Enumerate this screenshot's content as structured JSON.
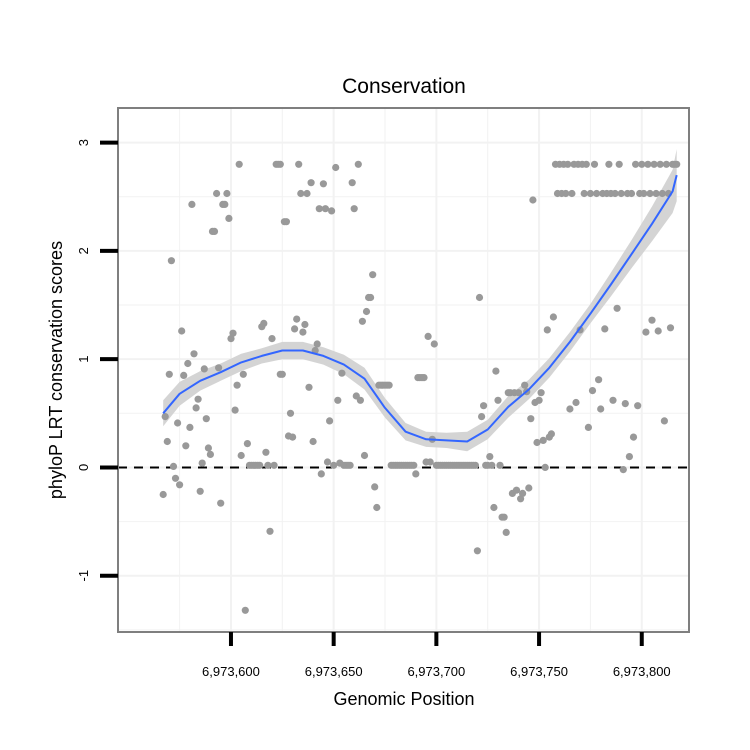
{
  "chart_data": {
    "type": "scatter",
    "title": "Conservation",
    "xlabel": "Genomic Position",
    "ylabel": "phyloP LRT conservation scores",
    "xlim": [
      6973545,
      6973823
    ],
    "ylim": [
      -1.52,
      3.32
    ],
    "x_ticks": [
      6973600,
      6973650,
      6973700,
      6973750,
      6973800
    ],
    "x_tick_labels": [
      "6,973,600",
      "6,973,650",
      "6,973,700",
      "6,973,750",
      "6,973,800"
    ],
    "y_ticks": [
      -1,
      0,
      1,
      2,
      3
    ],
    "y_tick_labels": [
      "-1",
      "0",
      "1",
      "2",
      "3"
    ],
    "reference_line": {
      "y": 0,
      "style": "dashed"
    },
    "grid": true,
    "colors": {
      "points": "#999999",
      "smooth_line": "#3366FF",
      "confidence_band": "#d4d4d4",
      "reference_line": "#000000",
      "panel_border": "#7f7f7f",
      "grid": "#f2f2f2"
    },
    "points": [
      {
        "x": 6973567,
        "y": -0.25
      },
      {
        "x": 6973568,
        "y": 0.47
      },
      {
        "x": 6973569,
        "y": 0.24
      },
      {
        "x": 6973570,
        "y": 0.86
      },
      {
        "x": 6973571,
        "y": 1.91
      },
      {
        "x": 6973572,
        "y": 0.01
      },
      {
        "x": 6973573,
        "y": -0.1
      },
      {
        "x": 6973574,
        "y": 0.41
      },
      {
        "x": 6973575,
        "y": -0.16
      },
      {
        "x": 6973576,
        "y": 1.26
      },
      {
        "x": 6973577,
        "y": 0.85
      },
      {
        "x": 6973578,
        "y": 0.2
      },
      {
        "x": 6973579,
        "y": 0.96
      },
      {
        "x": 6973580,
        "y": 0.37
      },
      {
        "x": 6973581,
        "y": 2.43
      },
      {
        "x": 6973582,
        "y": 1.05
      },
      {
        "x": 6973583,
        "y": 0.55
      },
      {
        "x": 6973584,
        "y": 0.63
      },
      {
        "x": 6973585,
        "y": -0.22
      },
      {
        "x": 6973586,
        "y": 0.04
      },
      {
        "x": 6973587,
        "y": 0.91
      },
      {
        "x": 6973588,
        "y": 0.45
      },
      {
        "x": 6973589,
        "y": 0.18
      },
      {
        "x": 6973590,
        "y": 0.12
      },
      {
        "x": 6973591,
        "y": 2.18
      },
      {
        "x": 6973592,
        "y": 2.18
      },
      {
        "x": 6973593,
        "y": 2.53
      },
      {
        "x": 6973594,
        "y": 0.92
      },
      {
        "x": 6973595,
        "y": -0.33
      },
      {
        "x": 6973596,
        "y": 2.43
      },
      {
        "x": 6973597,
        "y": 2.43
      },
      {
        "x": 6973598,
        "y": 2.53
      },
      {
        "x": 6973599,
        "y": 2.3
      },
      {
        "x": 6973600,
        "y": 1.19
      },
      {
        "x": 6973601,
        "y": 1.24
      },
      {
        "x": 6973602,
        "y": 0.53
      },
      {
        "x": 6973603,
        "y": 0.76
      },
      {
        "x": 6973604,
        "y": 2.8
      },
      {
        "x": 6973605,
        "y": 0.11
      },
      {
        "x": 6973606,
        "y": 0.86
      },
      {
        "x": 6973607,
        "y": -1.32
      },
      {
        "x": 6973608,
        "y": 0.22
      },
      {
        "x": 6973609,
        "y": 0.02
      },
      {
        "x": 6973610,
        "y": 0.02
      },
      {
        "x": 6973611,
        "y": 0.02
      },
      {
        "x": 6973612,
        "y": 0.02
      },
      {
        "x": 6973613,
        "y": 0.02
      },
      {
        "x": 6973614,
        "y": 0.02
      },
      {
        "x": 6973615,
        "y": 1.3
      },
      {
        "x": 6973616,
        "y": 1.33
      },
      {
        "x": 6973617,
        "y": 0.14
      },
      {
        "x": 6973618,
        "y": 0.02
      },
      {
        "x": 6973619,
        "y": -0.59
      },
      {
        "x": 6973620,
        "y": 1.19
      },
      {
        "x": 6973621,
        "y": 0.02
      },
      {
        "x": 6973622,
        "y": 2.8
      },
      {
        "x": 6973623,
        "y": 2.8
      },
      {
        "x": 6973624,
        "y": 2.8
      },
      {
        "x": 6973624,
        "y": 0.86
      },
      {
        "x": 6973625,
        "y": 0.86
      },
      {
        "x": 6973626,
        "y": 2.27
      },
      {
        "x": 6973627,
        "y": 2.27
      },
      {
        "x": 6973628,
        "y": 0.29
      },
      {
        "x": 6973629,
        "y": 0.5
      },
      {
        "x": 6973630,
        "y": 0.28
      },
      {
        "x": 6973631,
        "y": 1.28
      },
      {
        "x": 6973632,
        "y": 1.37
      },
      {
        "x": 6973633,
        "y": 2.8
      },
      {
        "x": 6973634,
        "y": 2.53
      },
      {
        "x": 6973635,
        "y": 1.25
      },
      {
        "x": 6973636,
        "y": 1.32
      },
      {
        "x": 6973637,
        "y": 2.53
      },
      {
        "x": 6973638,
        "y": 0.74
      },
      {
        "x": 6973639,
        "y": 2.63
      },
      {
        "x": 6973640,
        "y": 0.24
      },
      {
        "x": 6973641,
        "y": 1.08
      },
      {
        "x": 6973642,
        "y": 1.14
      },
      {
        "x": 6973643,
        "y": 2.39
      },
      {
        "x": 6973644,
        "y": -0.06
      },
      {
        "x": 6973645,
        "y": 2.62
      },
      {
        "x": 6973646,
        "y": 2.39
      },
      {
        "x": 6973647,
        "y": 0.05
      },
      {
        "x": 6973648,
        "y": 0.43
      },
      {
        "x": 6973649,
        "y": 2.37
      },
      {
        "x": 6973650,
        "y": 0.02
      },
      {
        "x": 6973651,
        "y": 2.77
      },
      {
        "x": 6973652,
        "y": 0.62
      },
      {
        "x": 6973653,
        "y": 0.04
      },
      {
        "x": 6973654,
        "y": 0.87
      },
      {
        "x": 6973655,
        "y": 0.02
      },
      {
        "x": 6973656,
        "y": 0.02
      },
      {
        "x": 6973657,
        "y": 0.02
      },
      {
        "x": 6973658,
        "y": 0.02
      },
      {
        "x": 6973659,
        "y": 2.63
      },
      {
        "x": 6973660,
        "y": 2.39
      },
      {
        "x": 6973661,
        "y": 0.66
      },
      {
        "x": 6973662,
        "y": 2.8
      },
      {
        "x": 6973663,
        "y": 0.62
      },
      {
        "x": 6973664,
        "y": 1.35
      },
      {
        "x": 6973665,
        "y": 0.11
      },
      {
        "x": 6973666,
        "y": 1.44
      },
      {
        "x": 6973667,
        "y": 1.57
      },
      {
        "x": 6973668,
        "y": 1.57
      },
      {
        "x": 6973669,
        "y": 1.78
      },
      {
        "x": 6973670,
        "y": -0.18
      },
      {
        "x": 6973671,
        "y": -0.37
      },
      {
        "x": 6973672,
        "y": 0.76
      },
      {
        "x": 6973673,
        "y": 0.76
      },
      {
        "x": 6973674,
        "y": 0.76
      },
      {
        "x": 6973675,
        "y": 0.76
      },
      {
        "x": 6973676,
        "y": 0.76
      },
      {
        "x": 6973677,
        "y": 0.76
      },
      {
        "x": 6973678,
        "y": 0.02
      },
      {
        "x": 6973679,
        "y": 0.02
      },
      {
        "x": 6973680,
        "y": 0.02
      },
      {
        "x": 6973681,
        "y": 0.02
      },
      {
        "x": 6973682,
        "y": 0.02
      },
      {
        "x": 6973683,
        "y": 0.02
      },
      {
        "x": 6973684,
        "y": 0.02
      },
      {
        "x": 6973685,
        "y": 0.02
      },
      {
        "x": 6973686,
        "y": 0.02
      },
      {
        "x": 6973687,
        "y": 0.02
      },
      {
        "x": 6973688,
        "y": 0.02
      },
      {
        "x": 6973689,
        "y": 0.02
      },
      {
        "x": 6973690,
        "y": -0.06
      },
      {
        "x": 6973691,
        "y": 0.83
      },
      {
        "x": 6973692,
        "y": 0.83
      },
      {
        "x": 6973693,
        "y": 0.83
      },
      {
        "x": 6973694,
        "y": 0.83
      },
      {
        "x": 6973695,
        "y": 0.05
      },
      {
        "x": 6973696,
        "y": 1.21
      },
      {
        "x": 6973697,
        "y": 0.05
      },
      {
        "x": 6973698,
        "y": 0.26
      },
      {
        "x": 6973699,
        "y": 1.14
      },
      {
        "x": 6973700,
        "y": 0.02
      },
      {
        "x": 6973701,
        "y": 0.02
      },
      {
        "x": 6973702,
        "y": 0.02
      },
      {
        "x": 6973703,
        "y": 0.02
      },
      {
        "x": 6973704,
        "y": 0.02
      },
      {
        "x": 6973705,
        "y": 0.02
      },
      {
        "x": 6973706,
        "y": 0.02
      },
      {
        "x": 6973707,
        "y": 0.02
      },
      {
        "x": 6973708,
        "y": 0.02
      },
      {
        "x": 6973709,
        "y": 0.02
      },
      {
        "x": 6973710,
        "y": 0.02
      },
      {
        "x": 6973711,
        "y": 0.02
      },
      {
        "x": 6973712,
        "y": 0.02
      },
      {
        "x": 6973713,
        "y": 0.02
      },
      {
        "x": 6973714,
        "y": 0.02
      },
      {
        "x": 6973715,
        "y": 0.02
      },
      {
        "x": 6973716,
        "y": 0.02
      },
      {
        "x": 6973717,
        "y": 0.02
      },
      {
        "x": 6973718,
        "y": 0.02
      },
      {
        "x": 6973719,
        "y": 0.02
      },
      {
        "x": 6973720,
        "y": -0.77
      },
      {
        "x": 6973721,
        "y": 1.57
      },
      {
        "x": 6973722,
        "y": 0.47
      },
      {
        "x": 6973723,
        "y": 0.57
      },
      {
        "x": 6973724,
        "y": 0.02
      },
      {
        "x": 6973725,
        "y": 0.02
      },
      {
        "x": 6973726,
        "y": 0.1
      },
      {
        "x": 6973727,
        "y": 0.02
      },
      {
        "x": 6973728,
        "y": -0.37
      },
      {
        "x": 6973729,
        "y": 0.89
      },
      {
        "x": 6973730,
        "y": 0.62
      },
      {
        "x": 6973731,
        "y": 0.02
      },
      {
        "x": 6973732,
        "y": -0.46
      },
      {
        "x": 6973733,
        "y": -0.46
      },
      {
        "x": 6973734,
        "y": -0.6
      },
      {
        "x": 6973735,
        "y": 0.69
      },
      {
        "x": 6973736,
        "y": 0.69
      },
      {
        "x": 6973737,
        "y": -0.24
      },
      {
        "x": 6973738,
        "y": 0.69
      },
      {
        "x": 6973739,
        "y": -0.21
      },
      {
        "x": 6973740,
        "y": 0.69
      },
      {
        "x": 6973741,
        "y": -0.29
      },
      {
        "x": 6973742,
        "y": -0.24
      },
      {
        "x": 6973743,
        "y": 0.76
      },
      {
        "x": 6973744,
        "y": 0.7
      },
      {
        "x": 6973745,
        "y": -0.19
      },
      {
        "x": 6973746,
        "y": 0.45
      },
      {
        "x": 6973747,
        "y": 2.47
      },
      {
        "x": 6973748,
        "y": 0.6
      },
      {
        "x": 6973749,
        "y": 0.23
      },
      {
        "x": 6973750,
        "y": 0.62
      },
      {
        "x": 6973751,
        "y": 0.69
      },
      {
        "x": 6973752,
        "y": 0.25
      },
      {
        "x": 6973753,
        "y": 0.0
      },
      {
        "x": 6973754,
        "y": 1.27
      },
      {
        "x": 6973755,
        "y": 0.28
      },
      {
        "x": 6973756,
        "y": 0.31
      },
      {
        "x": 6973757,
        "y": 1.39
      },
      {
        "x": 6973758,
        "y": 2.8
      },
      {
        "x": 6973759,
        "y": 2.53
      },
      {
        "x": 6973760,
        "y": 2.8
      },
      {
        "x": 6973761,
        "y": 2.53
      },
      {
        "x": 6973762,
        "y": 2.8
      },
      {
        "x": 6973763,
        "y": 2.53
      },
      {
        "x": 6973764,
        "y": 2.8
      },
      {
        "x": 6973765,
        "y": 0.54
      },
      {
        "x": 6973766,
        "y": 2.53
      },
      {
        "x": 6973767,
        "y": 2.8
      },
      {
        "x": 6973768,
        "y": 0.6
      },
      {
        "x": 6973769,
        "y": 2.8
      },
      {
        "x": 6973770,
        "y": 1.27
      },
      {
        "x": 6973771,
        "y": 2.8
      },
      {
        "x": 6973772,
        "y": 2.53
      },
      {
        "x": 6973773,
        "y": 2.8
      },
      {
        "x": 6973774,
        "y": 0.37
      },
      {
        "x": 6973775,
        "y": 2.53
      },
      {
        "x": 6973776,
        "y": 0.71
      },
      {
        "x": 6973777,
        "y": 2.8
      },
      {
        "x": 6973778,
        "y": 2.53
      },
      {
        "x": 6973779,
        "y": 0.81
      },
      {
        "x": 6973780,
        "y": 0.54
      },
      {
        "x": 6973781,
        "y": 2.53
      },
      {
        "x": 6973782,
        "y": 1.28
      },
      {
        "x": 6973783,
        "y": 2.53
      },
      {
        "x": 6973784,
        "y": 2.8
      },
      {
        "x": 6973785,
        "y": 2.53
      },
      {
        "x": 6973786,
        "y": 0.62
      },
      {
        "x": 6973787,
        "y": 2.53
      },
      {
        "x": 6973788,
        "y": 1.47
      },
      {
        "x": 6973789,
        "y": 2.8
      },
      {
        "x": 6973790,
        "y": 2.53
      },
      {
        "x": 6973791,
        "y": -0.02
      },
      {
        "x": 6973792,
        "y": 0.59
      },
      {
        "x": 6973793,
        "y": 2.53
      },
      {
        "x": 6973794,
        "y": 0.1
      },
      {
        "x": 6973795,
        "y": 2.53
      },
      {
        "x": 6973796,
        "y": 0.28
      },
      {
        "x": 6973797,
        "y": 2.8
      },
      {
        "x": 6973798,
        "y": 0.57
      },
      {
        "x": 6973799,
        "y": 2.53
      },
      {
        "x": 6973800,
        "y": 2.8
      },
      {
        "x": 6973801,
        "y": 2.53
      },
      {
        "x": 6973802,
        "y": 1.25
      },
      {
        "x": 6973803,
        "y": 2.8
      },
      {
        "x": 6973804,
        "y": 2.53
      },
      {
        "x": 6973805,
        "y": 1.36
      },
      {
        "x": 6973806,
        "y": 2.8
      },
      {
        "x": 6973807,
        "y": 2.53
      },
      {
        "x": 6973808,
        "y": 1.26
      },
      {
        "x": 6973809,
        "y": 2.8
      },
      {
        "x": 6973810,
        "y": 2.53
      },
      {
        "x": 6973811,
        "y": 0.43
      },
      {
        "x": 6973812,
        "y": 2.8
      },
      {
        "x": 6973813,
        "y": 2.53
      },
      {
        "x": 6973814,
        "y": 1.29
      },
      {
        "x": 6973815,
        "y": 2.8
      },
      {
        "x": 6973816,
        "y": 2.8
      },
      {
        "x": 6973817,
        "y": 2.8
      }
    ],
    "smooth_fit": {
      "x": [
        6973567,
        6973575,
        6973585,
        6973595,
        6973605,
        6973615,
        6973625,
        6973635,
        6973645,
        6973655,
        6973665,
        6973675,
        6973685,
        6973695,
        6973705,
        6973715,
        6973725,
        6973735,
        6973745,
        6973755,
        6973765,
        6973775,
        6973785,
        6973795,
        6973805,
        6973815,
        6973817
      ],
      "y": [
        0.5,
        0.68,
        0.8,
        0.88,
        0.97,
        1.03,
        1.08,
        1.08,
        1.03,
        0.95,
        0.82,
        0.55,
        0.33,
        0.26,
        0.25,
        0.24,
        0.35,
        0.56,
        0.72,
        0.92,
        1.16,
        1.42,
        1.69,
        1.97,
        2.25,
        2.55,
        2.7
      ],
      "lower": [
        0.38,
        0.57,
        0.71,
        0.8,
        0.89,
        0.96,
        1.0,
        1.0,
        0.95,
        0.86,
        0.72,
        0.46,
        0.25,
        0.19,
        0.18,
        0.15,
        0.26,
        0.46,
        0.63,
        0.83,
        1.07,
        1.33,
        1.58,
        1.84,
        2.09,
        2.35,
        2.46
      ],
      "upper": [
        0.62,
        0.79,
        0.89,
        0.96,
        1.05,
        1.1,
        1.16,
        1.16,
        1.11,
        1.04,
        0.92,
        0.64,
        0.41,
        0.33,
        0.32,
        0.33,
        0.44,
        0.66,
        0.81,
        1.01,
        1.25,
        1.51,
        1.8,
        2.1,
        2.41,
        2.75,
        2.94
      ]
    }
  }
}
